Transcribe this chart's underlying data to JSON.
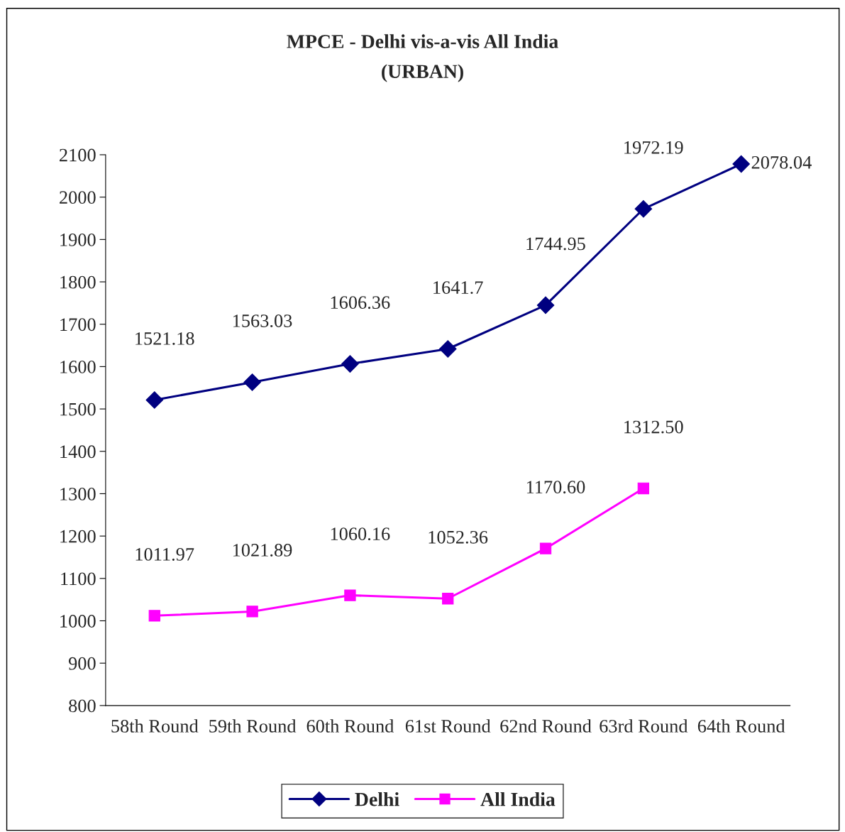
{
  "chart_data": {
    "type": "line",
    "title": "MPCE - Delhi vis-a-vis All India",
    "subtitle": "(URBAN)",
    "categories": [
      "58th Round",
      "59th Round",
      "60th Round",
      "61st Round",
      "62nd Round",
      "63rd Round",
      "64th Round"
    ],
    "series": [
      {
        "name": "Delhi",
        "color": "#000080",
        "marker": "diamond",
        "values": [
          1521.18,
          1563.03,
          1606.36,
          1641.7,
          1744.95,
          1972.19,
          2078.04
        ],
        "value_labels": [
          "1521.18",
          "1563.03",
          "1606.36",
          "1641.7",
          "1744.95",
          "1972.19",
          "2078.04"
        ]
      },
      {
        "name": "All India",
        "color": "#ff00ff",
        "marker": "square",
        "values": [
          1011.97,
          1021.89,
          1060.16,
          1052.36,
          1170.6,
          1312.5,
          null
        ],
        "value_labels": [
          "1011.97",
          "1021.89",
          "1060.16",
          "1052.36",
          "1170.60",
          "1312.50",
          null
        ]
      }
    ],
    "ylim": [
      800,
      2100
    ],
    "yticks": [
      800,
      900,
      1000,
      1100,
      1200,
      1300,
      1400,
      1500,
      1600,
      1700,
      1800,
      1900,
      2000,
      2100
    ],
    "grid": false,
    "legend": "bottom",
    "line_style": "solid"
  }
}
